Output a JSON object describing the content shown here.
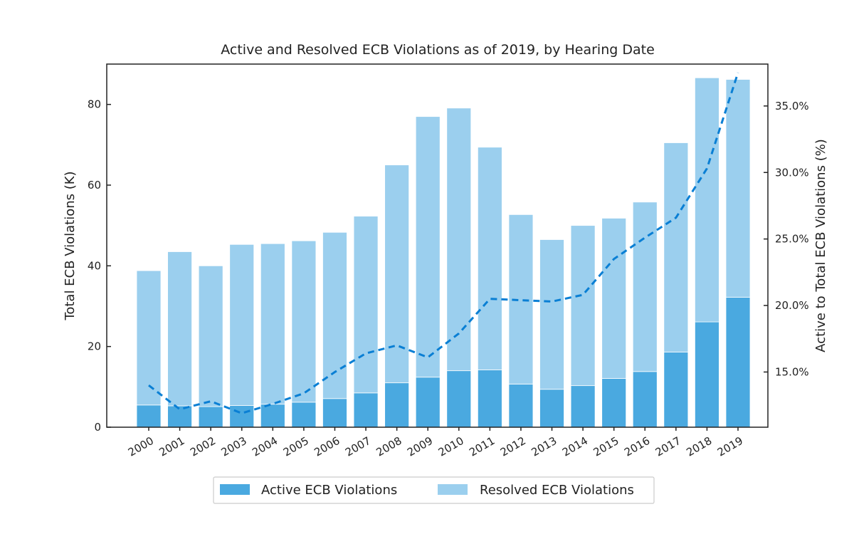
{
  "chart_data": {
    "type": "bar",
    "title": "Active and Resolved ECB Violations as of 2019, by Hearing Date",
    "xlabel": "",
    "ylabel": "Total ECB Violations (K)",
    "ylabel_right": "Active to Total ECB Violations (%)",
    "stacked": true,
    "grid": false,
    "legend_position": "bottom-center",
    "categories": [
      "2000",
      "2001",
      "2002",
      "2003",
      "2004",
      "2005",
      "2006",
      "2007",
      "2008",
      "2009",
      "2010",
      "2011",
      "2012",
      "2013",
      "2014",
      "2015",
      "2016",
      "2017",
      "2018",
      "2019"
    ],
    "series": [
      {
        "name": "Active ECB Violations",
        "color": "#4aa9e0",
        "values": [
          5.5,
          5.3,
          5.1,
          5.4,
          5.7,
          6.2,
          7.1,
          8.5,
          11.0,
          12.4,
          14.0,
          14.2,
          10.7,
          9.4,
          10.3,
          12.1,
          13.8,
          18.6,
          26.1,
          32.2
        ]
      },
      {
        "name": "Resolved ECB Violations",
        "color": "#9bcfee",
        "values": [
          33.3,
          38.2,
          34.9,
          39.9,
          39.8,
          40.0,
          41.2,
          43.8,
          54.0,
          64.6,
          65.1,
          55.2,
          42.0,
          37.1,
          39.7,
          39.7,
          42.0,
          51.9,
          60.5,
          54.0
        ]
      },
      {
        "color": "#0a7fd4",
        "axis": "right",
        "line_style": "dashed",
        "values": [
          14.0,
          12.2,
          12.8,
          11.9,
          12.6,
          13.4,
          15.0,
          16.4,
          17.0,
          16.1,
          17.9,
          20.5,
          20.4,
          20.3,
          20.8,
          23.5,
          25.1,
          26.6,
          30.3,
          37.5
        ]
      }
    ],
    "ylim": [
      0,
      90
    ],
    "yticks": [
      0,
      20,
      40,
      60,
      80
    ],
    "ylim_right": [
      10.85,
      38.15
    ],
    "yticks_right": [
      "15.0%",
      "20.0%",
      "25.0%",
      "30.0%",
      "35.0%"
    ],
    "yticks_right_values": [
      15,
      20,
      25,
      30,
      35
    ]
  }
}
